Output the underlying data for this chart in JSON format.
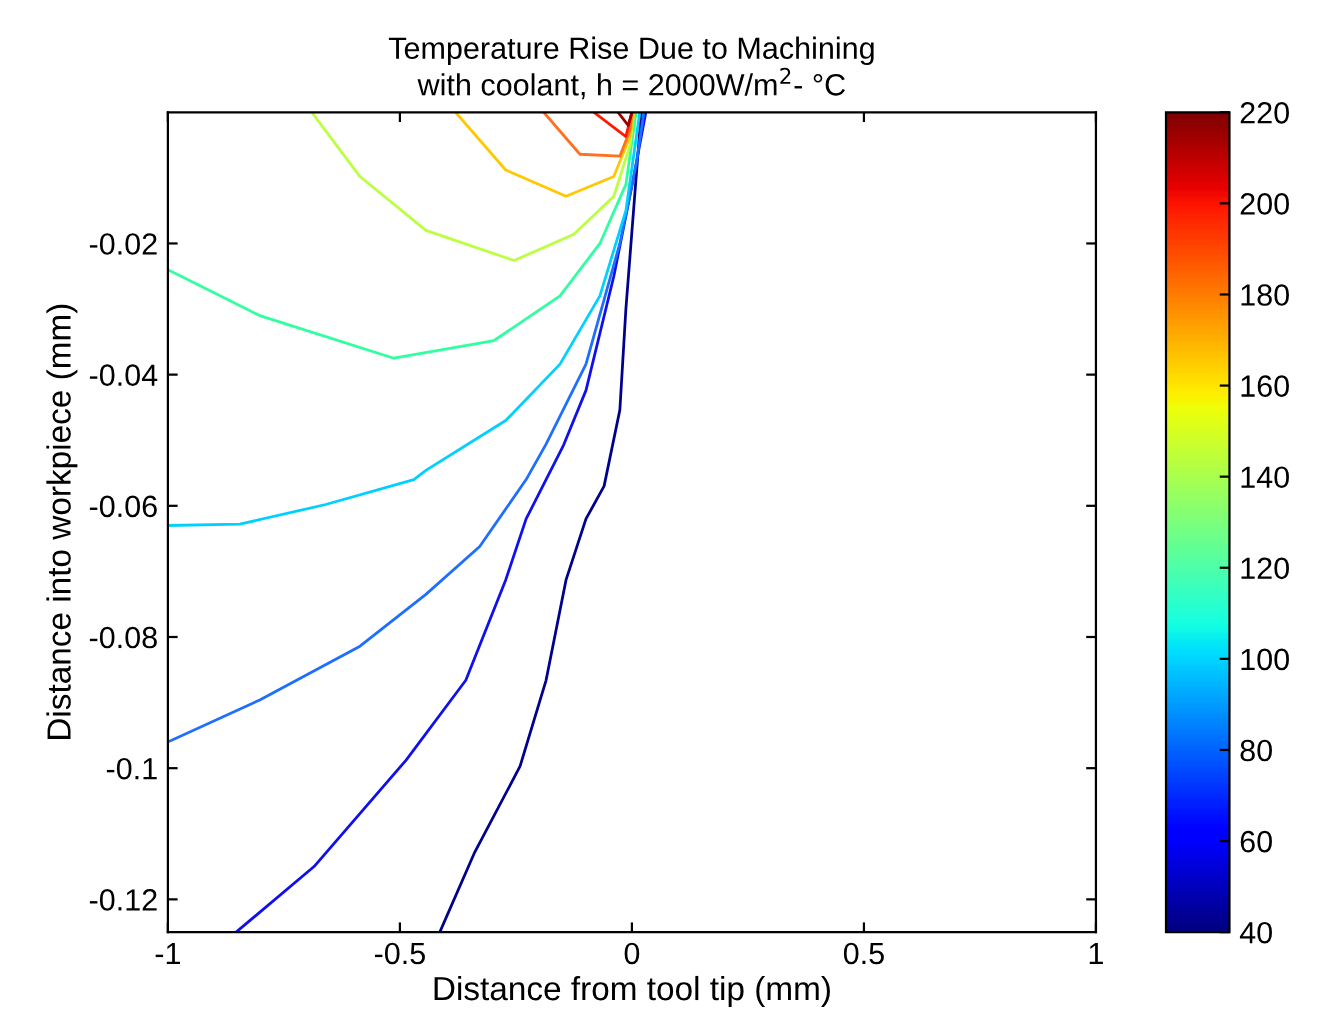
{
  "chart_data": {
    "type": "line",
    "title": "Temperature Rise Due to Machining",
    "subtitle": "with coolant, h = 2000W/m$^{2}$- °C",
    "xlabel": "Distance from tool tip (mm)",
    "ylabel": "Distance into workpiece (mm)",
    "xlim": [
      -1,
      1
    ],
    "ylim": [
      -0.125,
      0
    ],
    "xticks": [
      -1,
      -0.5,
      0,
      0.5,
      1
    ],
    "yticks": [
      -0.12,
      -0.1,
      -0.08,
      -0.06,
      -0.04,
      -0.02
    ],
    "clim": [
      40,
      220
    ],
    "cticks": [
      40,
      60,
      80,
      100,
      120,
      140,
      160,
      180,
      200,
      220
    ],
    "grid": false,
    "legend": false,
    "marker": "none",
    "line_style": "solid",
    "series": [
      {
        "color": "#00008f",
        "x": [
          -0.414,
          -0.34,
          -0.241,
          -0.185,
          -0.142,
          -0.099,
          -0.06,
          -0.026,
          -0.013,
          0.02
        ],
        "values": [
          -0.125,
          -0.113,
          -0.0997,
          -0.0866,
          -0.0713,
          -0.062,
          -0.057,
          -0.0454,
          -0.03,
          0
        ]
      },
      {
        "color": "#1010ee",
        "x": [
          -0.853,
          -0.685,
          -0.487,
          -0.358,
          -0.272,
          -0.228,
          -0.147,
          -0.099,
          -0.039,
          0.004,
          0.03
        ],
        "values": [
          -0.125,
          -0.115,
          -0.0988,
          -0.0866,
          -0.0713,
          -0.062,
          -0.0507,
          -0.0424,
          -0.025,
          -0.0098,
          0
        ]
      },
      {
        "color": "#1e6fff",
        "x": [
          -1,
          -0.802,
          -0.586,
          -0.444,
          -0.328,
          -0.228,
          -0.185,
          -0.099,
          -0.026,
          0.009,
          0.026
        ],
        "values": [
          -0.096,
          -0.0896,
          -0.0814,
          -0.0735,
          -0.0662,
          -0.056,
          -0.0506,
          -0.0384,
          -0.02,
          -0.008,
          0
        ]
      },
      {
        "color": "#00d0ff",
        "x": [
          -1,
          -0.845,
          -0.66,
          -0.47,
          -0.444,
          -0.272,
          -0.155,
          -0.069,
          -0.013,
          0.017
        ],
        "values": [
          -0.063,
          -0.0628,
          -0.0598,
          -0.056,
          -0.0546,
          -0.047,
          -0.0384,
          -0.028,
          -0.015,
          0
        ]
      },
      {
        "color": "#30ffa0",
        "x": [
          -1,
          -0.802,
          -0.513,
          -0.297,
          -0.155,
          -0.069,
          -0.013,
          0.009
        ],
        "values": [
          -0.024,
          -0.031,
          -0.0375,
          -0.0348,
          -0.028,
          -0.02,
          -0.011,
          0
        ]
      },
      {
        "color": "#bbff40",
        "x": [
          -0.69,
          -0.586,
          -0.444,
          -0.254,
          -0.125,
          -0.039,
          -0.004,
          0.004
        ],
        "values": [
          0,
          -0.0098,
          -0.018,
          -0.0226,
          -0.0186,
          -0.0128,
          -0.005,
          0
        ]
      },
      {
        "color": "#ffc800",
        "x": [
          -0.38,
          -0.272,
          -0.142,
          -0.039,
          -0.004,
          0.004
        ],
        "values": [
          0,
          -0.0088,
          -0.0128,
          -0.0098,
          -0.0037,
          0
        ]
      },
      {
        "color": "#ff7020",
        "x": [
          -0.19,
          -0.112,
          -0.026,
          -0.004,
          0
        ],
        "values": [
          0,
          -0.0064,
          -0.0067,
          -0.0027,
          0
        ]
      },
      {
        "color": "#ff1a00",
        "x": [
          -0.082,
          -0.013,
          0
        ],
        "values": [
          0,
          -0.0037,
          0
        ]
      },
      {
        "color": "#a00000",
        "x": [
          -0.03,
          -0.008,
          0
        ],
        "values": [
          0,
          -0.002,
          0
        ]
      }
    ]
  }
}
